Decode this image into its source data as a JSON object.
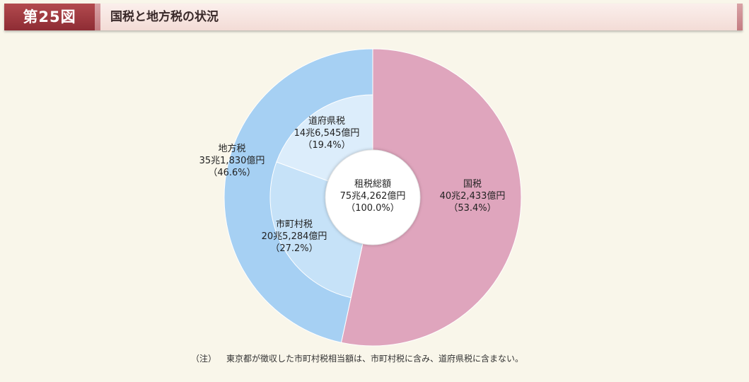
{
  "header": {
    "figure_number": "第25図",
    "title": "国税と地方税の状況"
  },
  "chart_data": {
    "type": "pie",
    "title": "国税と地方税の状況",
    "center": {
      "name": "租税総額",
      "value": "75兆4,262億円",
      "percent": "（100.0%）"
    },
    "outer": [
      {
        "name": "国税",
        "value": "40兆2,433億円",
        "percent": "（53.4%）",
        "share": 53.4,
        "color": "#dfa5bd"
      },
      {
        "name": "地方税",
        "value": "35兆1,830億円",
        "percent": "（46.6%）",
        "share": 46.6,
        "color": "#a6d0f3"
      }
    ],
    "inner": [
      {
        "name": "道府県税",
        "value": "14兆6,545億円",
        "percent": "（19.4%）",
        "share": 19.4,
        "color": "#dcedfb"
      },
      {
        "name": "市町村税",
        "value": "20兆5,284億円",
        "percent": "（27.2%）",
        "share": 27.2,
        "color": "#c6e2f8"
      }
    ]
  },
  "note": {
    "mark": "（注）",
    "text": "東京都が徴収した市町村税相当額は、市町村税に含み、道府県税に含まない。"
  }
}
